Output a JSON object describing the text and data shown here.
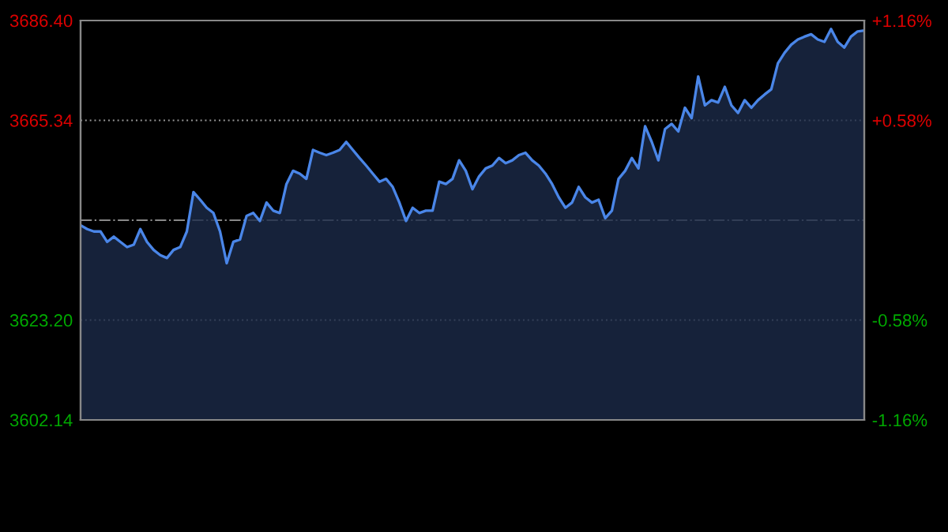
{
  "chart_data": {
    "type": "area",
    "categories": [
      null,
      null,
      null,
      null,
      null,
      null,
      null,
      null,
      null,
      null,
      null,
      null,
      null,
      null,
      null,
      null,
      null,
      null,
      null,
      null,
      null,
      null,
      null,
      null,
      null,
      null,
      null,
      null,
      null,
      null,
      null,
      null,
      null,
      null,
      null,
      null,
      null,
      null,
      null,
      null,
      null,
      null,
      null,
      null,
      null,
      null,
      null,
      null,
      null,
      null,
      null,
      null,
      null,
      null,
      null,
      null,
      null,
      null,
      null,
      null,
      null,
      null,
      null,
      null,
      null,
      null,
      null,
      null,
      null,
      null,
      null,
      null,
      null,
      null,
      null,
      null,
      null,
      null,
      null,
      null,
      null,
      null,
      null,
      null,
      null,
      null,
      null,
      null,
      null,
      null,
      null,
      null,
      null,
      null,
      null,
      null,
      null,
      null,
      null,
      null,
      null,
      null,
      null,
      null,
      null,
      null,
      null,
      null,
      null,
      null,
      null,
      null,
      null,
      null,
      null,
      null,
      null,
      null,
      null
    ],
    "series": [
      {
        "color": "#4a86e8",
        "values": [
          3643.2,
          3642.4,
          3641.9,
          3641.9,
          3639.7,
          3640.8,
          3639.7,
          3638.6,
          3639.1,
          3642.4,
          3639.7,
          3638.0,
          3636.9,
          3636.3,
          3638.0,
          3638.6,
          3641.9,
          3650.2,
          3648.6,
          3646.9,
          3645.8,
          3641.9,
          3635.2,
          3639.7,
          3640.2,
          3645.2,
          3645.8,
          3644.1,
          3648.0,
          3646.3,
          3645.8,
          3651.9,
          3654.7,
          3654.1,
          3653.0,
          3659.1,
          3658.5,
          3658.0,
          3658.5,
          3659.1,
          3660.8,
          3659.1,
          3657.4,
          3655.8,
          3654.1,
          3652.4,
          3653.0,
          3651.3,
          3648.0,
          3644.1,
          3646.9,
          3645.8,
          3646.3,
          3646.3,
          3652.4,
          3651.9,
          3653.0,
          3656.9,
          3654.7,
          3650.8,
          3653.5,
          3655.2,
          3655.8,
          3657.4,
          3656.3,
          3656.9,
          3658.0,
          3658.5,
          3656.9,
          3655.8,
          3654.1,
          3651.9,
          3649.1,
          3646.9,
          3648.0,
          3651.3,
          3649.1,
          3648.0,
          3648.6,
          3644.7,
          3646.3,
          3653.0,
          3654.7,
          3657.4,
          3655.2,
          3664.1,
          3660.8,
          3656.9,
          3663.5,
          3664.6,
          3663.0,
          3668.0,
          3665.8,
          3674.6,
          3668.5,
          3669.6,
          3669.1,
          3672.4,
          3668.5,
          3666.9,
          3669.6,
          3668.0,
          3669.6,
          3670.8,
          3671.9,
          3677.4,
          3679.6,
          3681.3,
          3682.4,
          3683.0,
          3683.5,
          3682.4,
          3681.9,
          3684.6,
          3681.9,
          3680.7,
          3683.0,
          3684.1,
          3684.3
        ]
      }
    ],
    "ylim": [
      3602.14,
      3686.4
    ],
    "yticks": [
      {
        "value": 3602.14,
        "label": "3602.14"
      },
      {
        "value": 3623.2,
        "label": "3623.20"
      },
      {
        "value": 3665.34,
        "label": "3665.34"
      },
      {
        "value": 3686.4,
        "label": "3686.40"
      }
    ],
    "y2lim": [
      -1.16,
      1.16
    ],
    "y2ticks": [
      {
        "value": -1.16,
        "label": "-1.16%"
      },
      {
        "value": -0.58,
        "label": "-0.58%"
      },
      {
        "value": 0.58,
        "label": "+0.58%"
      },
      {
        "value": 1.16,
        "label": "+1.16%"
      }
    ],
    "ref_lines": [
      {
        "axis": "y",
        "value": 3644.27,
        "line_style": "dashdot"
      }
    ],
    "grid": "y",
    "legend": false,
    "tick_labels": "y"
  }
}
